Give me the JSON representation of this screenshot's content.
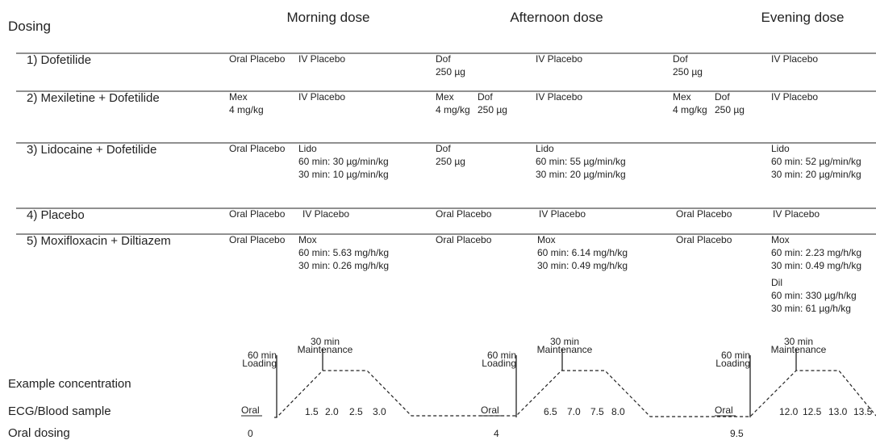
{
  "header": {
    "title": "Dosing",
    "periods": [
      "Morning dose",
      "Afternoon dose",
      "Evening dose"
    ]
  },
  "rows": [
    {
      "label": "1) Dofetilide",
      "cells": [
        [
          "Oral Placebo"
        ],
        [
          "IV Placebo"
        ],
        [
          "Dof",
          "250 µg"
        ],
        [
          "IV Placebo"
        ],
        [
          "Dof",
          "250 µg"
        ],
        [
          "IV Placebo"
        ]
      ]
    },
    {
      "label": "2) Mexiletine + Dofetilide",
      "cells": [
        [
          "Mex",
          "4 mg/kg"
        ],
        [
          "IV Placebo"
        ],
        [
          "Mex",
          "4 mg/kg"
        ],
        [
          "Dof",
          "250 µg"
        ],
        [
          "IV Placebo"
        ],
        [
          "Mex",
          "4 mg/kg"
        ],
        [
          "Dof",
          "250 µg"
        ],
        [
          "IV Placebo"
        ]
      ]
    },
    {
      "label": "3) Lidocaine + Dofetilide",
      "cells": [
        [
          "Oral Placebo"
        ],
        [
          "Lido",
          "60 min: 30 µg/min/kg",
          "30 min: 10 µg/min/kg"
        ],
        [
          "Dof",
          "250 µg"
        ],
        [
          "Lido",
          "60 min: 55 µg/min/kg",
          "30 min: 20 µg/min/kg"
        ],
        [
          "Lido",
          "60 min: 52 µg/min/kg",
          "30 min: 20 µg/min/kg"
        ]
      ]
    },
    {
      "label": "4) Placebo",
      "cells": [
        [
          "Oral Placebo"
        ],
        [
          "IV Placebo"
        ],
        [
          "Oral Placebo"
        ],
        [
          "IV Placebo"
        ],
        [
          "Oral Placebo"
        ],
        [
          "IV Placebo"
        ]
      ]
    },
    {
      "label": "5) Moxifloxacin + Diltiazem",
      "cells": [
        [
          "Oral Placebo"
        ],
        [
          "Mox",
          "60 min: 5.63 mg/h/kg",
          "30 min: 0.26 mg/h/kg"
        ],
        [
          "Oral Placebo"
        ],
        [
          "Mox",
          "60 min: 6.14 mg/h/kg",
          "30 min: 0.49 mg/h/kg"
        ],
        [
          "Oral Placebo"
        ],
        [
          "Mox",
          "60 min: 2.23 mg/h/kg",
          "30 min: 0.49 mg/h/kg"
        ],
        [
          "Dil",
          "60 min: 330 µg/h/kg",
          "30 min: 61 µg/h/kg"
        ]
      ]
    }
  ],
  "profile": {
    "labels": [
      "Example concentration",
      "ECG/Blood sample",
      "Oral dosing"
    ],
    "doses": [
      {
        "oral": "Oral",
        "loading": [
          "60 min",
          "Loading"
        ],
        "maintenance": [
          "30 min",
          "Maintenance"
        ],
        "samples": [
          "1.5",
          "2.0",
          "2.5",
          "3.0"
        ],
        "oral_time": "0"
      },
      {
        "oral": "Oral",
        "loading": [
          "60 min",
          "Loading"
        ],
        "maintenance": [
          "30 min",
          "Maintenance"
        ],
        "samples": [
          "6.5",
          "7.0",
          "7.5",
          "8.0"
        ],
        "oral_time": "4"
      },
      {
        "oral": "Oral",
        "loading": [
          "60 min",
          "Loading"
        ],
        "maintenance": [
          "30 min",
          "Maintenance"
        ],
        "samples": [
          "12.0",
          "12.5",
          "13.0",
          "13.5"
        ],
        "oral_time": "9.5"
      }
    ]
  }
}
